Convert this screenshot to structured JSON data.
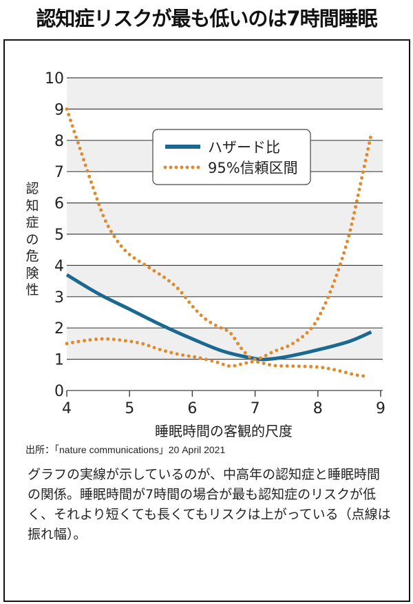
{
  "title": "認知症リスクが最も低いのは7時間睡眠",
  "source": "出所：「nature communications」20 April 2021",
  "caption": "グラフの実線が示しているのが、中高年の認知症と睡眠時間の関係。睡眠時間が7時間の場合が最も認知症のリスクが低く、それより短くても長くてもリスクは上がっている（点線は振れ幅）。",
  "chart_data": {
    "type": "line",
    "title": "",
    "xlabel": "睡眠時間の客観的尺度",
    "ylabel": "認知症の危険性",
    "xlim": [
      4,
      9
    ],
    "ylim": [
      0,
      10
    ],
    "xticks": [
      "4",
      "5",
      "6",
      "7",
      "8",
      "9"
    ],
    "yticks": [
      "0",
      "1",
      "2",
      "3",
      "4",
      "5",
      "6",
      "7",
      "8",
      "9",
      "10"
    ],
    "grid": true,
    "banded_background": true,
    "legend_position": "top-center",
    "series": [
      {
        "name": "ハザード比",
        "style": "solid",
        "color": "#1b6990",
        "points": [
          [
            4,
            3.7
          ],
          [
            4.5,
            3.1
          ],
          [
            5,
            2.6
          ],
          [
            5.5,
            2.1
          ],
          [
            6,
            1.65
          ],
          [
            6.5,
            1.25
          ],
          [
            7,
            1.02
          ],
          [
            7.2,
            1.0
          ],
          [
            7.5,
            1.08
          ],
          [
            8,
            1.3
          ],
          [
            8.5,
            1.57
          ],
          [
            8.85,
            1.87
          ]
        ]
      },
      {
        "name": "95%信頼区間",
        "style": "dotted",
        "color": "#e08a2c",
        "points": [
          [
            4,
            9.0
          ],
          [
            4.2,
            7.8
          ],
          [
            4.4,
            6.6
          ],
          [
            4.6,
            5.5
          ],
          [
            4.8,
            4.8
          ],
          [
            5,
            4.35
          ],
          [
            5.3,
            3.95
          ],
          [
            5.6,
            3.55
          ],
          [
            5.8,
            3.2
          ],
          [
            6,
            2.7
          ],
          [
            6.2,
            2.3
          ],
          [
            6.4,
            2.05
          ],
          [
            6.6,
            1.85
          ],
          [
            6.8,
            1.3
          ],
          [
            7,
            1.0
          ],
          [
            7.3,
            1.25
          ],
          [
            7.6,
            1.5
          ],
          [
            7.9,
            2.0
          ],
          [
            8.1,
            2.7
          ],
          [
            8.3,
            3.7
          ],
          [
            8.5,
            5.0
          ],
          [
            8.7,
            6.8
          ],
          [
            8.85,
            8.2
          ]
        ]
      },
      {
        "name": "95%信頼区間",
        "style": "dotted",
        "color": "#e08a2c",
        "legend": false,
        "points": [
          [
            4,
            1.5
          ],
          [
            4.3,
            1.6
          ],
          [
            4.6,
            1.65
          ],
          [
            4.9,
            1.6
          ],
          [
            5.2,
            1.5
          ],
          [
            5.5,
            1.3
          ],
          [
            5.8,
            1.15
          ],
          [
            6.1,
            1.05
          ],
          [
            6.4,
            0.9
          ],
          [
            6.6,
            0.78
          ],
          [
            6.8,
            0.85
          ],
          [
            7,
            0.92
          ],
          [
            7.3,
            0.8
          ],
          [
            7.6,
            0.78
          ],
          [
            8,
            0.75
          ],
          [
            8.3,
            0.65
          ],
          [
            8.6,
            0.5
          ],
          [
            8.8,
            0.45
          ]
        ]
      }
    ]
  }
}
